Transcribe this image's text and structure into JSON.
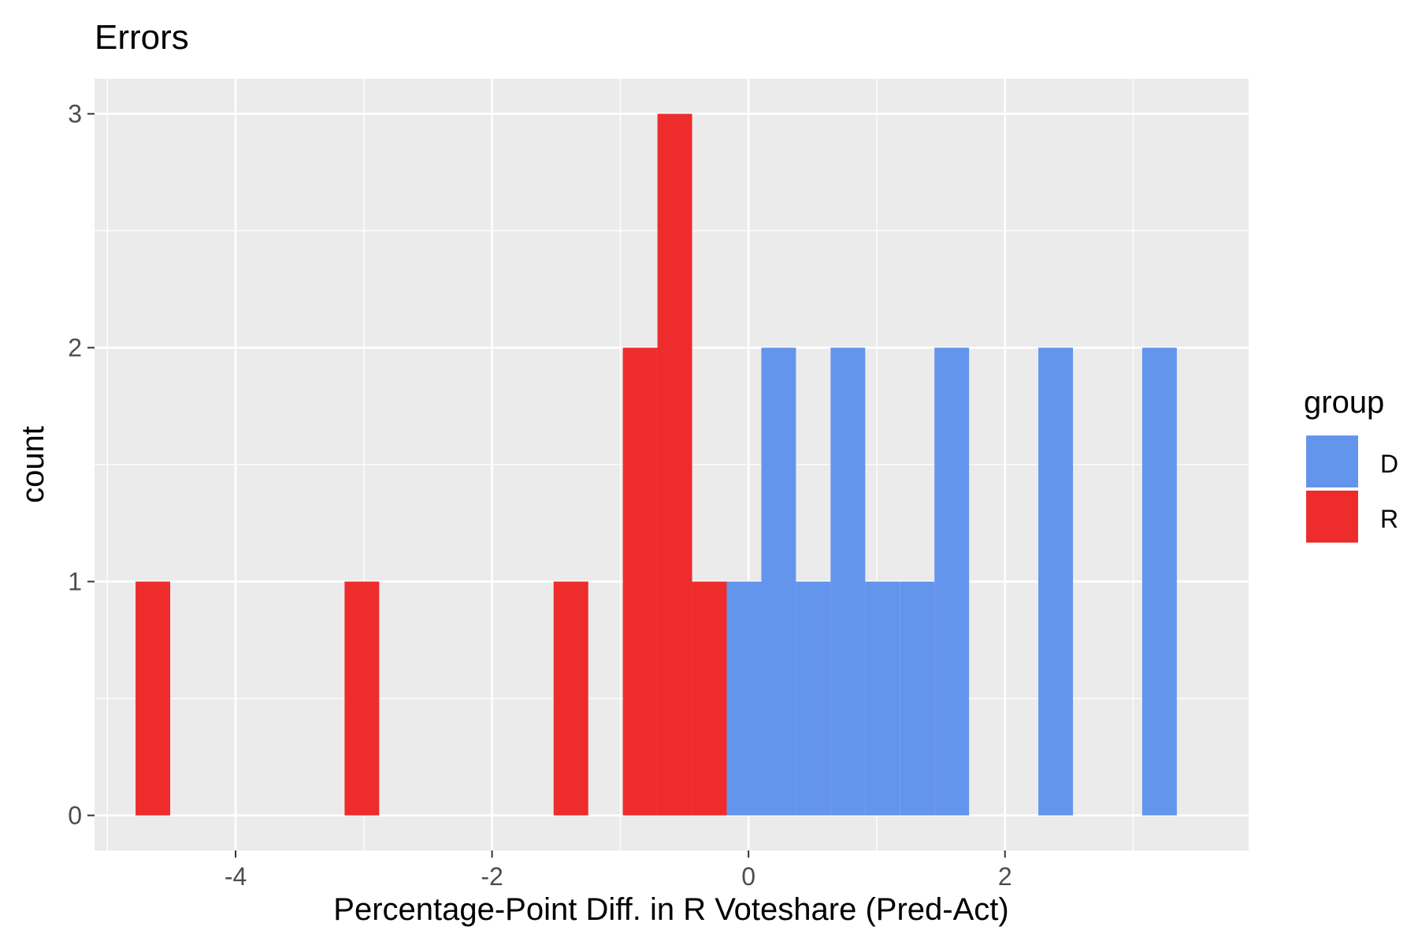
{
  "chart_data": {
    "type": "bar",
    "title": "Errors",
    "xlabel": "Percentage-Point Diff. in R Voteshare (Pred-Act)",
    "ylabel": "count",
    "xlim": [
      -5.1,
      3.9
    ],
    "ylim": [
      -0.15,
      3.15
    ],
    "x_ticks": [
      -4,
      -2,
      0,
      2
    ],
    "x_tick_labels": [
      "-4",
      "-2",
      "0",
      "2"
    ],
    "y_ticks": [
      0,
      1,
      2,
      3
    ],
    "y_tick_labels": [
      "0",
      "1",
      "2",
      "3"
    ],
    "bin_width": 0.27,
    "grid": true,
    "stacked": true,
    "legend": {
      "title": "group",
      "placement": "right",
      "entries": [
        {
          "label": "D",
          "color": "#6495ED"
        },
        {
          "label": "R",
          "color": "#EE2C2C"
        }
      ]
    },
    "series": [
      {
        "name": "R",
        "color": "#EE2C2C",
        "bins": [
          {
            "x0": -4.78,
            "x1": -4.51,
            "count": 1
          },
          {
            "x0": -3.15,
            "x1": -2.88,
            "count": 1
          },
          {
            "x0": -1.52,
            "x1": -1.25,
            "count": 1
          },
          {
            "x0": -0.98,
            "x1": -0.71,
            "count": 2
          },
          {
            "x0": -0.71,
            "x1": -0.44,
            "count": 3
          },
          {
            "x0": -0.44,
            "x1": -0.17,
            "count": 1
          }
        ]
      },
      {
        "name": "D",
        "color": "#6495ED",
        "bins": [
          {
            "x0": -0.17,
            "x1": 0.1,
            "count": 1
          },
          {
            "x0": 0.1,
            "x1": 0.37,
            "count": 2
          },
          {
            "x0": 0.37,
            "x1": 0.64,
            "count": 1
          },
          {
            "x0": 0.64,
            "x1": 0.91,
            "count": 2
          },
          {
            "x0": 0.91,
            "x1": 1.18,
            "count": 1
          },
          {
            "x0": 1.18,
            "x1": 1.45,
            "count": 1
          },
          {
            "x0": 1.45,
            "x1": 1.72,
            "count": 2
          },
          {
            "x0": 2.26,
            "x1": 2.53,
            "count": 2
          },
          {
            "x0": 3.07,
            "x1": 3.34,
            "count": 2
          }
        ]
      }
    ],
    "colors": {
      "panel_background": "#EBEBEB",
      "grid": "#FFFFFF",
      "tick_text": "#4D4D4D",
      "axis_title": "#000000"
    }
  }
}
